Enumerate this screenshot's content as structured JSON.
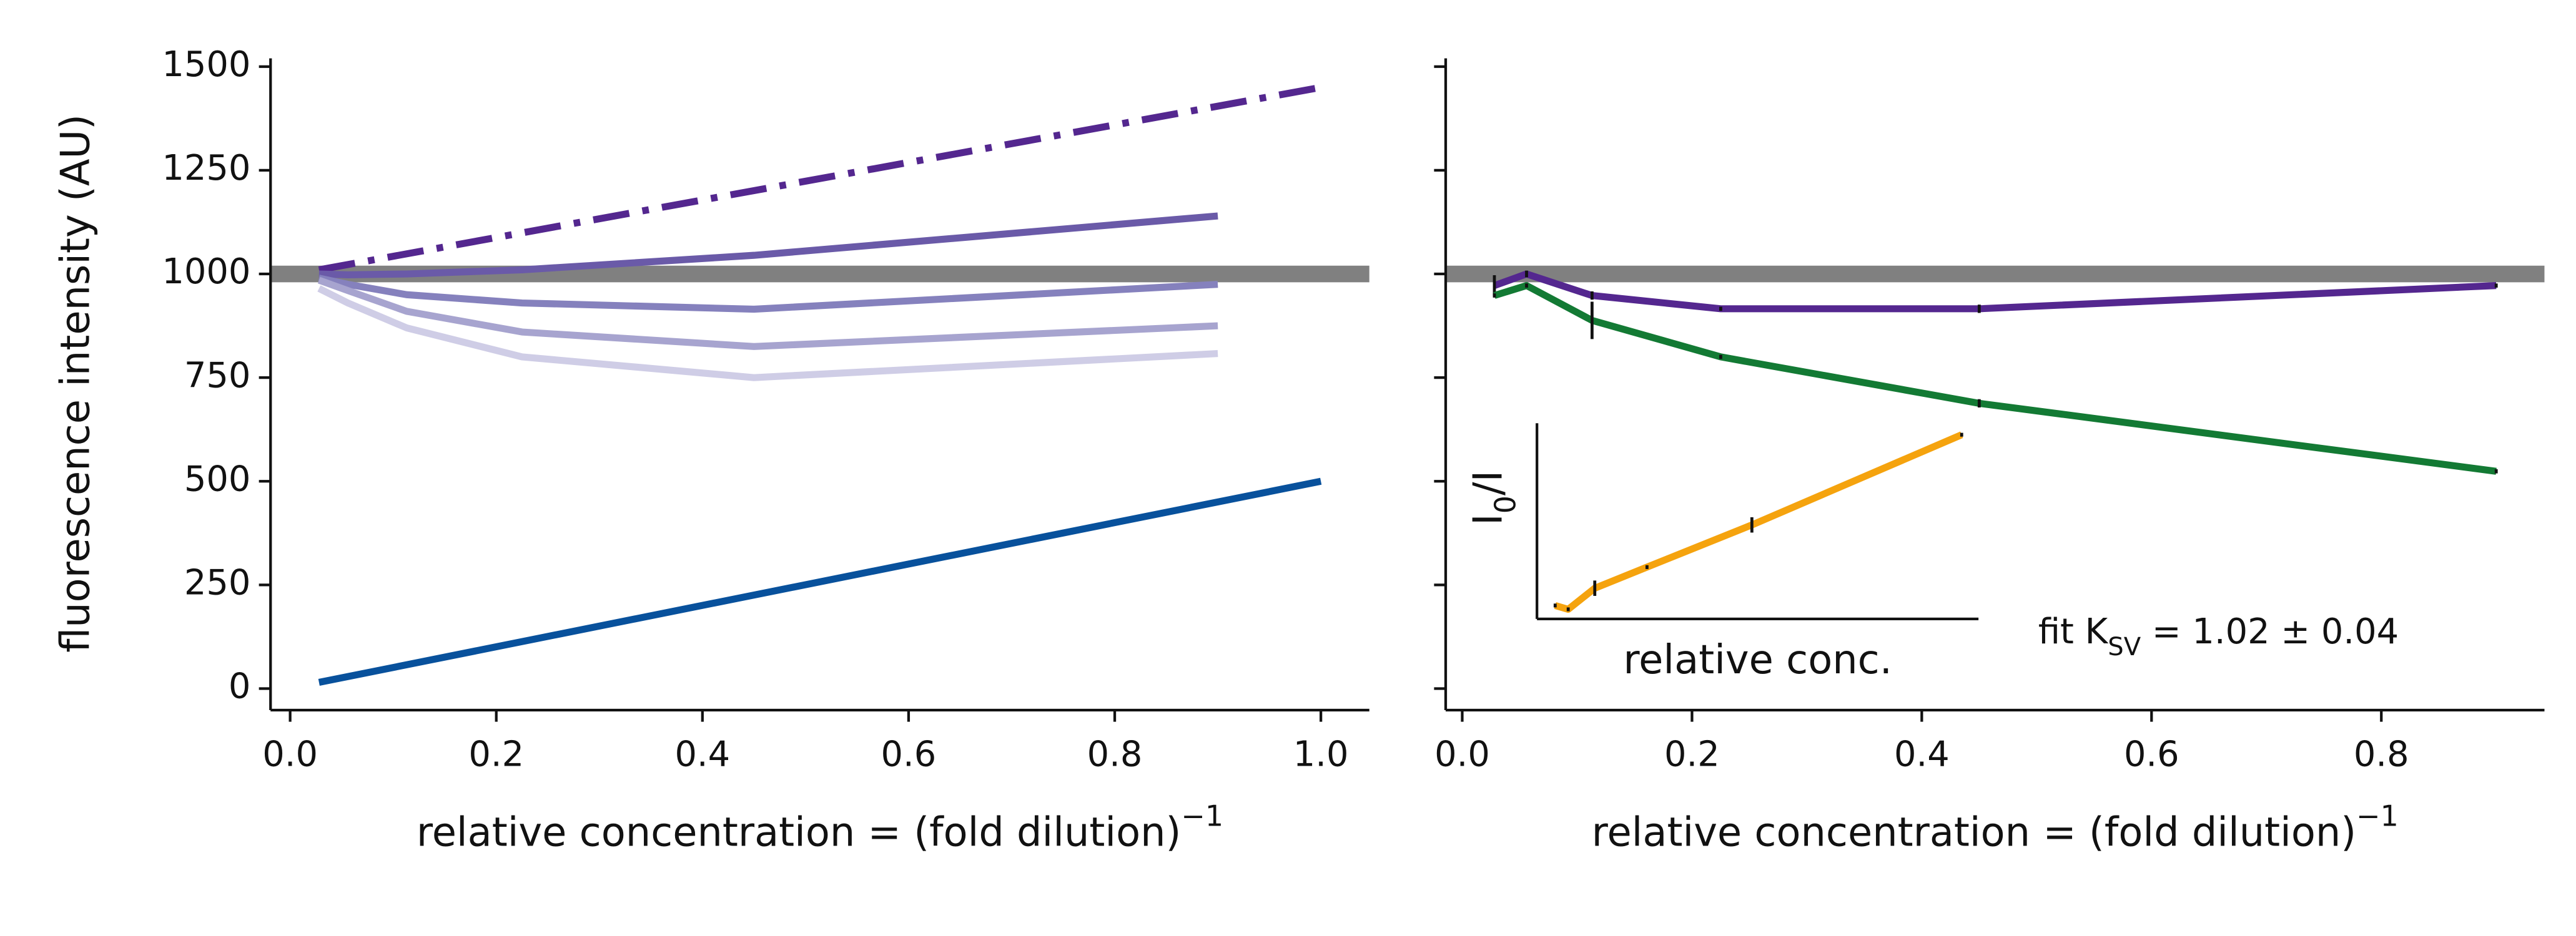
{
  "chart_data": [
    {
      "type": "line",
      "ylabel": "fluorescence intensity (AU)",
      "xlabel": {
        "text": "relative concentration = (fold dilution)",
        "superscript": "−1"
      },
      "xlim": [
        -0.019,
        1.047
      ],
      "ylim": [
        -52,
        1520
      ],
      "xticks": [
        {
          "value": 0,
          "label": "0.0"
        },
        {
          "value": 0.2,
          "label": "0.2"
        },
        {
          "value": 0.4,
          "label": "0.4"
        },
        {
          "value": 0.6,
          "label": "0.6"
        },
        {
          "value": 0.8,
          "label": "0.8"
        },
        {
          "value": 1,
          "label": "1.0"
        }
      ],
      "yticks": [
        0,
        250,
        500,
        750,
        1000,
        1250,
        1500
      ],
      "ytick_labels": true,
      "hline": {
        "value": 1000,
        "color": "#808080"
      },
      "series": [
        {
          "color": "#54278f",
          "dash": "dashdot",
          "x": [
            0.028,
            1.0
          ],
          "values": [
            1010,
            1450
          ]
        },
        {
          "color": "#6a5aa8",
          "x": [
            0.028,
            0.056,
            0.113,
            0.225,
            0.45,
            0.9
          ],
          "values": [
            1000,
            998,
            1000,
            1010,
            1045,
            1140
          ]
        },
        {
          "color": "#8581bd",
          "x": [
            0.028,
            0.056,
            0.113,
            0.225,
            0.45,
            0.9
          ],
          "values": [
            990,
            975,
            950,
            930,
            915,
            975
          ]
        },
        {
          "color": "#a7a4cf",
          "x": [
            0.028,
            0.056,
            0.113,
            0.225,
            0.45,
            0.9
          ],
          "values": [
            985,
            960,
            910,
            860,
            825,
            875
          ]
        },
        {
          "color": "#cfcde6",
          "x": [
            0.028,
            0.056,
            0.113,
            0.225,
            0.45,
            0.9
          ],
          "values": [
            965,
            930,
            870,
            800,
            750,
            808
          ]
        },
        {
          "color": "#08519c",
          "x": [
            0.028,
            1.0
          ],
          "values": [
            15,
            500
          ]
        }
      ]
    },
    {
      "type": "line",
      "xlabel": {
        "text": "relative concentration = (fold dilution)",
        "superscript": "−1"
      },
      "xlim": [
        -0.0144,
        0.942
      ],
      "ylim": [
        -52,
        1520
      ],
      "xticks": [
        {
          "value": 0,
          "label": "0.0"
        },
        {
          "value": 0.2,
          "label": "0.2"
        },
        {
          "value": 0.4,
          "label": "0.4"
        },
        {
          "value": 0.6,
          "label": "0.6"
        },
        {
          "value": 0.8,
          "label": "0.8"
        }
      ],
      "yticks": [
        0,
        250,
        500,
        750,
        1000,
        1250,
        1500
      ],
      "ytick_labels": false,
      "hline": {
        "value": 1000,
        "color": "#808080"
      },
      "annotation": {
        "text": "fit K",
        "subscript": "SV",
        "rest": " = 1.02 ± 0.04"
      },
      "series": [
        {
          "color": "#54278f",
          "x": [
            0.028,
            0.056,
            0.113,
            0.225,
            0.45,
            0.9
          ],
          "values": [
            972,
            1000,
            948,
            916,
            916,
            972
          ],
          "errors": [
            25,
            8,
            10,
            5,
            10,
            5
          ]
        },
        {
          "color": "#137a34",
          "x": [
            0.028,
            0.056,
            0.113,
            0.225,
            0.45,
            0.9
          ],
          "values": [
            948,
            972,
            888,
            800,
            688,
            524
          ],
          "errors": [
            5,
            5,
            45,
            5,
            10,
            5
          ]
        }
      ]
    },
    {
      "type": "line",
      "xlabel": {
        "text": "relative conc."
      },
      "ylabel": {
        "text": "I",
        "subscript": "0",
        "rest": "/I"
      },
      "xlim": [
        -0.011,
        0.936
      ],
      "ylim": [
        0.96,
        1.98
      ],
      "series": [
        {
          "color": "#f5a30e",
          "x": [
            0.028,
            0.056,
            0.113,
            0.225,
            0.45,
            0.9
          ],
          "values": [
            1.03,
            1.01,
            1.12,
            1.23,
            1.45,
            1.92
          ],
          "errors": [
            0.01,
            0.01,
            0.04,
            0.01,
            0.04,
            0.01
          ]
        }
      ]
    }
  ]
}
